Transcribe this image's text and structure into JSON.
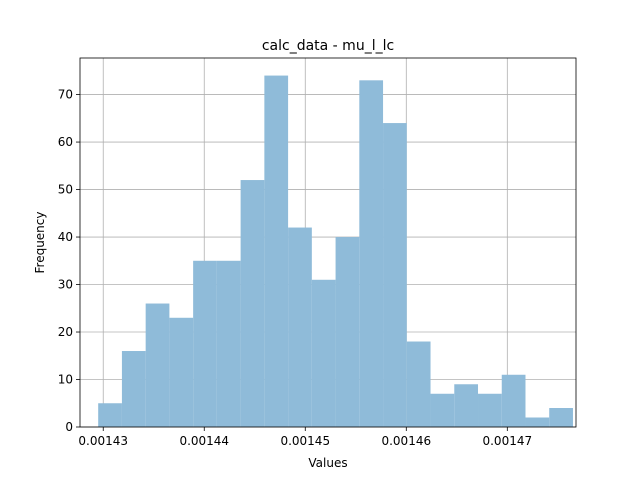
{
  "chart_data": {
    "type": "bar",
    "subtype": "histogram",
    "title": "calc_data - mu_l_lc",
    "xlabel": "Values",
    "ylabel": "Frequency",
    "grid": true,
    "bar_color": "#8fbbd9",
    "bin_start": 0.0014295,
    "bin_width": 2.35e-06,
    "values": [
      5,
      16,
      26,
      23,
      35,
      35,
      52,
      74,
      42,
      31,
      40,
      73,
      64,
      18,
      7,
      9,
      7,
      11,
      2,
      4
    ],
    "xlim": [
      0.0014277,
      0.0014768
    ],
    "ylim": [
      0,
      77.7
    ],
    "xticks": [
      {
        "value": 0.00143,
        "label": "0.00143"
      },
      {
        "value": 0.00144,
        "label": "0.00144"
      },
      {
        "value": 0.00145,
        "label": "0.00145"
      },
      {
        "value": 0.00146,
        "label": "0.00146"
      },
      {
        "value": 0.00147,
        "label": "0.00147"
      }
    ],
    "yticks": [
      {
        "value": 0,
        "label": "0"
      },
      {
        "value": 10,
        "label": "10"
      },
      {
        "value": 20,
        "label": "20"
      },
      {
        "value": 30,
        "label": "30"
      },
      {
        "value": 40,
        "label": "40"
      },
      {
        "value": 50,
        "label": "50"
      },
      {
        "value": 60,
        "label": "60"
      },
      {
        "value": 70,
        "label": "70"
      }
    ]
  }
}
